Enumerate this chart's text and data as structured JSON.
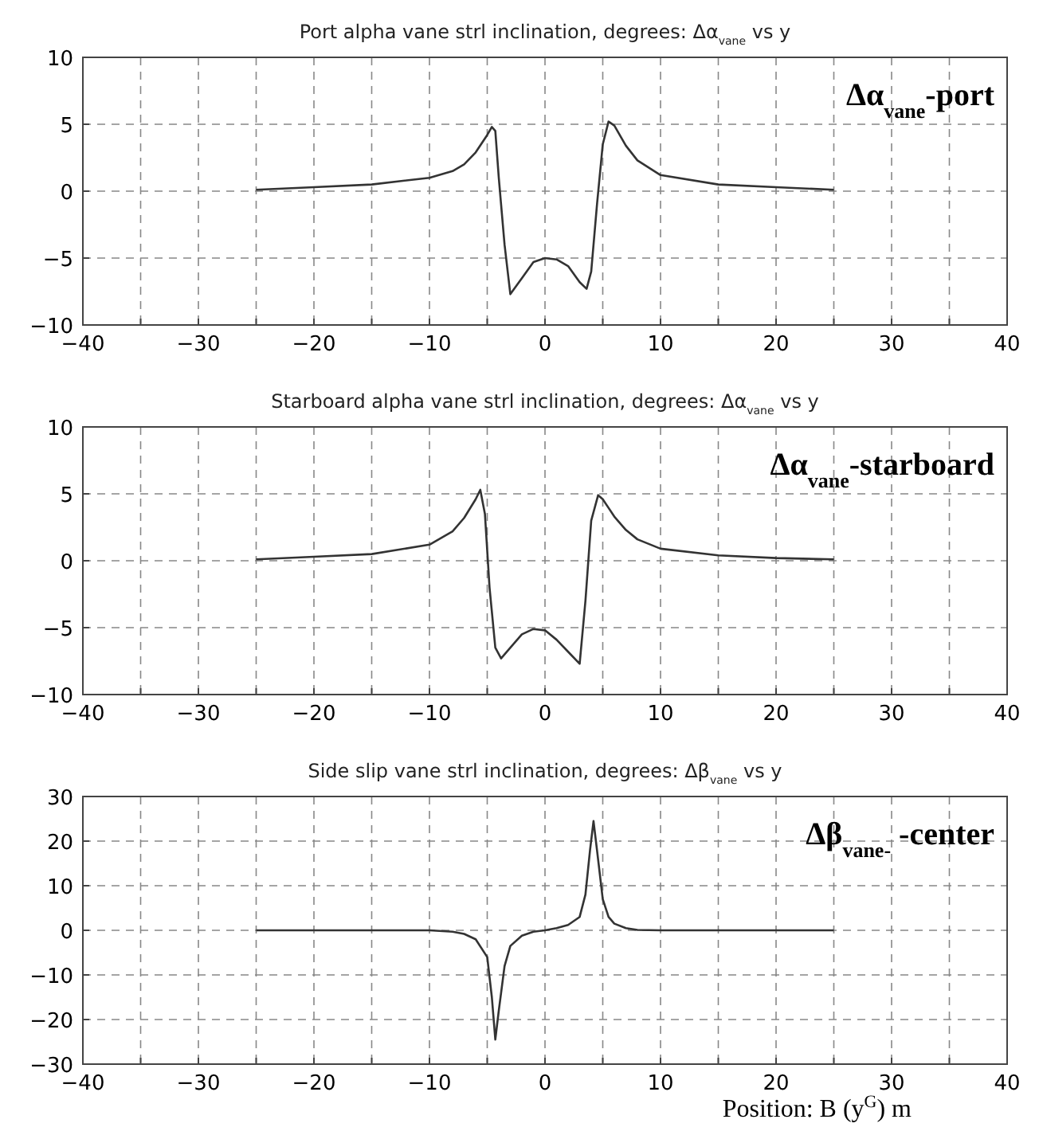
{
  "chart_data": [
    {
      "type": "line",
      "title": "Port alpha vane strl inclination, degrees: Δα$_{vane}$ vs y",
      "annotations": [
        "Δα$_{vane}$-port"
      ],
      "grid": true,
      "marker": "none",
      "line_style": "solid",
      "xlim": [
        -40,
        40
      ],
      "ylim": [
        -10,
        10
      ],
      "yticks": [
        -10,
        -5,
        0,
        5,
        10
      ],
      "xticks": [
        -40,
        {
          "value": -35,
          "label": null
        },
        -30,
        {
          "value": -25,
          "label": null
        },
        -20,
        {
          "value": -15,
          "label": null
        },
        -10,
        {
          "value": -5,
          "label": null
        },
        0,
        {
          "value": 5,
          "label": null
        },
        10,
        {
          "value": 15,
          "label": null
        },
        20,
        {
          "value": 25,
          "label": null
        },
        30,
        {
          "value": 35,
          "label": null
        },
        40
      ],
      "series": [
        {
          "color": "#333333",
          "x": [
            -25,
            -20,
            -15,
            -10,
            -8,
            -7,
            -6,
            -5,
            -4.6,
            -4.3,
            -4,
            -3.5,
            -3,
            -2,
            -1,
            0,
            1,
            2,
            3,
            3.6,
            4,
            4.5,
            5,
            5.5,
            6,
            7,
            8,
            10,
            15,
            20,
            25
          ],
          "values": [
            0.1,
            0.3,
            0.5,
            1,
            1.5,
            2,
            2.9,
            4.2,
            4.8,
            4.5,
            1,
            -4,
            -7.7,
            -6.5,
            -5.3,
            -5,
            -5.1,
            -5.6,
            -6.8,
            -7.3,
            -6,
            -1,
            3.5,
            5.2,
            4.9,
            3.4,
            2.3,
            1.2,
            0.5,
            0.3,
            0.1
          ]
        }
      ]
    },
    {
      "type": "line",
      "title": "Starboard alpha vane strl inclination, degrees: Δα$_{vane}$ vs y",
      "annotations": [
        "Δα$_{vane}$-starboard"
      ],
      "grid": true,
      "marker": "none",
      "line_style": "solid",
      "xlim": [
        -40,
        40
      ],
      "ylim": [
        -10,
        10
      ],
      "yticks": [
        -10,
        -5,
        0,
        5,
        10
      ],
      "xticks": [
        -40,
        {
          "value": -35,
          "label": null
        },
        -30,
        {
          "value": -25,
          "label": null
        },
        -20,
        {
          "value": -15,
          "label": null
        },
        -10,
        {
          "value": -5,
          "label": null
        },
        0,
        {
          "value": 5,
          "label": null
        },
        10,
        {
          "value": 15,
          "label": null
        },
        20,
        {
          "value": 25,
          "label": null
        },
        30,
        {
          "value": 35,
          "label": null
        },
        40
      ],
      "series": [
        {
          "color": "#333333",
          "x": [
            -25,
            -20,
            -15,
            -10,
            -8,
            -7,
            -6,
            -5.6,
            -5.2,
            -4.8,
            -4.3,
            -3.8,
            -3,
            -2,
            -1,
            0,
            1,
            2,
            3,
            3.5,
            4,
            4.6,
            5,
            6,
            7,
            8,
            10,
            15,
            20,
            25
          ],
          "values": [
            0.1,
            0.3,
            0.5,
            1.2,
            2.2,
            3.2,
            4.6,
            5.3,
            3.5,
            -2,
            -6.5,
            -7.3,
            -6.5,
            -5.5,
            -5.1,
            -5.2,
            -5.9,
            -6.8,
            -7.7,
            -3,
            3,
            4.9,
            4.6,
            3.3,
            2.3,
            1.6,
            0.9,
            0.4,
            0.2,
            0.1
          ]
        }
      ]
    },
    {
      "type": "line",
      "title": "Side slip vane strl inclination, degrees: Δβ$_{vane}$ vs y",
      "xlabel": "Position: B (y$^{G}$) m",
      "annotations": [
        "Δβ$_{vane-}$ -center"
      ],
      "grid": true,
      "marker": "none",
      "line_style": "solid",
      "xlim": [
        -40,
        40
      ],
      "ylim": [
        -30,
        30
      ],
      "yticks": [
        -30,
        -20,
        -10,
        0,
        10,
        20,
        30
      ],
      "xticks": [
        -40,
        {
          "value": -35,
          "label": null
        },
        -30,
        {
          "value": -25,
          "label": null
        },
        -20,
        {
          "value": -15,
          "label": null
        },
        -10,
        {
          "value": -5,
          "label": null
        },
        0,
        {
          "value": 5,
          "label": null
        },
        10,
        {
          "value": 15,
          "label": null
        },
        20,
        {
          "value": 25,
          "label": null
        },
        30,
        {
          "value": 35,
          "label": null
        },
        40
      ],
      "series": [
        {
          "color": "#333333",
          "x": [
            -25,
            -10,
            -8,
            -7,
            -6,
            -5,
            -4.6,
            -4.3,
            -4,
            -3.5,
            -3,
            -2,
            -1,
            0,
            1,
            2,
            3,
            3.5,
            3.9,
            4.2,
            4.5,
            5,
            5.5,
            6,
            7,
            8,
            10,
            25
          ],
          "values": [
            0,
            0,
            -0.3,
            -0.8,
            -2,
            -6,
            -15,
            -24.5,
            -18,
            -8,
            -3.5,
            -1.2,
            -0.3,
            0,
            0.5,
            1.2,
            3,
            8,
            18,
            24.5,
            18,
            7,
            3,
            1.5,
            0.5,
            0.1,
            0,
            0
          ]
        }
      ]
    }
  ]
}
